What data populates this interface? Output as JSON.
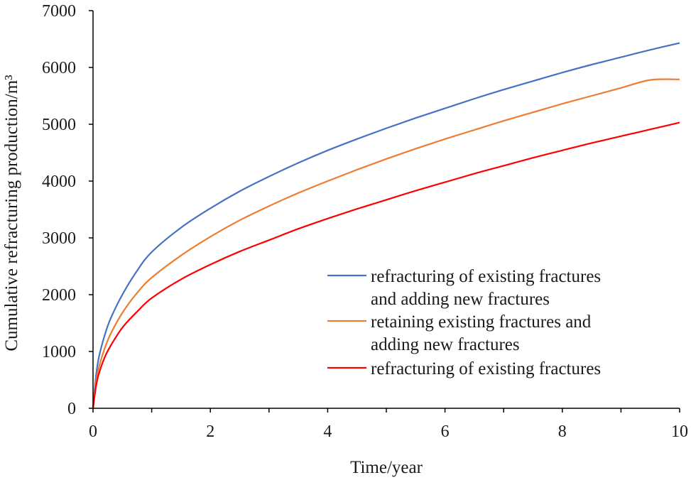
{
  "chart_data": {
    "type": "line",
    "title": "",
    "xlabel": "Time/year",
    "ylabel": "Cumulative refracturing production/m³",
    "xlim": [
      0,
      10
    ],
    "ylim": [
      0,
      7000
    ],
    "x_ticks": [
      0,
      2,
      4,
      6,
      8,
      10
    ],
    "x_tick_labels": [
      "0",
      "2",
      "4",
      "6",
      "8",
      "10"
    ],
    "y_ticks": [
      0,
      1000,
      2000,
      3000,
      4000,
      5000,
      6000,
      7000
    ],
    "y_tick_labels": [
      "0",
      "1000",
      "2000",
      "3000",
      "4000",
      "5000",
      "6000",
      "7000"
    ],
    "x_minor_step": 1,
    "grid": false,
    "legend_position": "bottom-right",
    "x": [
      0,
      0.05,
      0.1,
      0.2,
      0.3,
      0.5,
      0.75,
      1,
      1.5,
      2,
      2.5,
      3,
      3.5,
      4,
      4.5,
      5,
      5.5,
      6,
      6.5,
      7,
      7.5,
      8,
      8.5,
      9,
      9.5,
      10
    ],
    "series": [
      {
        "name_lines": [
          "refracturing of existing fractures",
          "and adding new fractures"
        ],
        "color": "#4472C4",
        "values": [
          0,
          560,
          900,
          1290,
          1580,
          2000,
          2420,
          2750,
          3180,
          3520,
          3820,
          4080,
          4320,
          4540,
          4740,
          4930,
          5110,
          5280,
          5450,
          5610,
          5760,
          5910,
          6050,
          6180,
          6310,
          6430
        ]
      },
      {
        "name_lines": [
          "retaining existing fractures and",
          "adding new fractures"
        ],
        "color": "#ED7D31",
        "values": [
          0,
          450,
          720,
          1060,
          1310,
          1680,
          2030,
          2300,
          2690,
          3020,
          3310,
          3560,
          3790,
          4000,
          4200,
          4390,
          4570,
          4740,
          4900,
          5060,
          5210,
          5360,
          5500,
          5640,
          5780,
          5790
        ]
      },
      {
        "name_lines": [
          "refracturing of existing fractures"
        ],
        "color": "#FF0000",
        "values": [
          0,
          380,
          610,
          900,
          1100,
          1420,
          1700,
          1940,
          2270,
          2530,
          2760,
          2960,
          3160,
          3340,
          3510,
          3670,
          3830,
          3980,
          4130,
          4270,
          4410,
          4540,
          4670,
          4790,
          4910,
          5030
        ]
      }
    ]
  }
}
